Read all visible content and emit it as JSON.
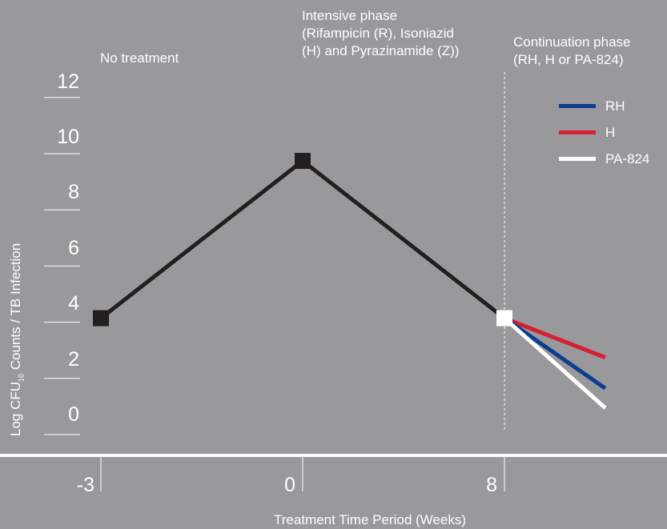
{
  "chart_data": {
    "type": "line",
    "xlabel": "Treatment Time Period (Weeks)",
    "ylabel_main": "Log CFU",
    "ylabel_sub": "10",
    "ylabel_rest": " Counts / TB Infection",
    "ylim": [
      0,
      12
    ],
    "yticks": [
      "0",
      "2",
      "4",
      "6",
      "8",
      "10",
      "12"
    ],
    "xticks": [
      {
        "label": "-3",
        "value": -3
      },
      {
        "label": "0",
        "value": 0
      },
      {
        "label": "8",
        "value": 8
      }
    ],
    "grid": false,
    "legend_position": "top-right",
    "phases": {
      "no_treatment": "No treatment",
      "intensive_line1": "Intensive phase",
      "intensive_line2": "(Rifampicin (R), Isoniazid",
      "intensive_line3": "(H) and Pyrazinamide (Z))",
      "continuation_line1": "Continuation phase",
      "continuation_line2": "(RH, H or PA-824)"
    },
    "main_series": {
      "x": [
        -3,
        0,
        8
      ],
      "y": [
        4,
        9.6,
        4
      ],
      "color": "#231f20"
    },
    "series": [
      {
        "name": "RH",
        "color": "#0b3e91",
        "x": [
          8,
          12
        ],
        "y": [
          4,
          1.5
        ]
      },
      {
        "name": "H",
        "color": "#d71f33",
        "x": [
          8,
          12
        ],
        "y": [
          4,
          2.6
        ]
      },
      {
        "name": "PA-824",
        "color": "#ffffff",
        "x": [
          8,
          12
        ],
        "y": [
          4,
          0.8
        ]
      }
    ]
  }
}
